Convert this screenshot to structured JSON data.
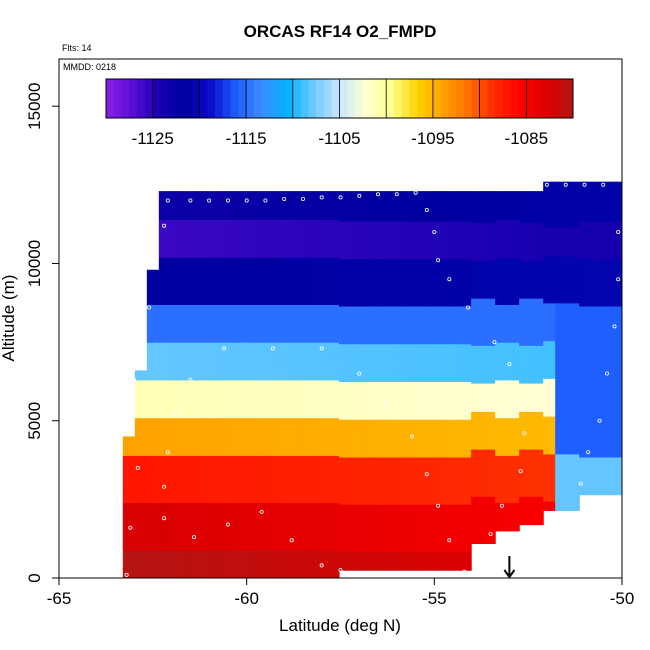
{
  "chart_data": {
    "type": "heatmap",
    "title": "ORCAS RF14 O2_FMPD",
    "annotations": {
      "flights": "Flts: 14",
      "date": "MMDD: 0218"
    },
    "xlabel": "Latitude (deg N)",
    "ylabel": "Altitude (m)",
    "xlim": [
      -65,
      -50
    ],
    "ylim": [
      0,
      16500
    ],
    "x_ticks": [
      -65,
      -60,
      -55,
      -50
    ],
    "y_ticks": [
      0,
      5000,
      10000,
      15000
    ],
    "x_tick_labels": [
      "-65",
      "-60",
      "-55",
      "-50"
    ],
    "y_tick_labels": [
      "0",
      "5000",
      "10000",
      "15000"
    ],
    "colorbar": {
      "range": [
        -1130,
        -1080
      ],
      "tick_values": [
        -1125,
        -1115,
        -1105,
        -1095,
        -1085
      ],
      "tick_labels": [
        "-1125",
        "-1115",
        "-1105",
        "-1095",
        "-1085"
      ],
      "colors": [
        "#8b1ee6",
        "#5a0fd6",
        "#1a00b0",
        "#0000a0",
        "#0a0ac8",
        "#1e5cff",
        "#3c8cff",
        "#00b4ff",
        "#6ec8ff",
        "#c8e6ff",
        "#ffffd2",
        "#ffff90",
        "#ffd200",
        "#ffa000",
        "#ff6e00",
        "#ff2800",
        "#ff0000",
        "#dc0000",
        "#b41414"
      ]
    },
    "flight_track": [
      {
        "lat": -63.2,
        "alt": 100
      },
      {
        "lat": -63.1,
        "alt": 1600
      },
      {
        "lat": -62.9,
        "alt": 3500
      },
      {
        "lat": -63.1,
        "alt": 5200
      },
      {
        "lat": -63.0,
        "alt": 6300
      },
      {
        "lat": -62.8,
        "alt": 7500
      },
      {
        "lat": -62.6,
        "alt": 8600
      },
      {
        "lat": -62.5,
        "alt": 9900
      },
      {
        "lat": -62.2,
        "alt": 11200
      },
      {
        "lat": -62.1,
        "alt": 12000
      },
      {
        "lat": -61.5,
        "alt": 12000
      },
      {
        "lat": -61.0,
        "alt": 12000
      },
      {
        "lat": -60.5,
        "alt": 12000
      },
      {
        "lat": -60.0,
        "alt": 12000
      },
      {
        "lat": -59.5,
        "alt": 12000
      },
      {
        "lat": -59.0,
        "alt": 12050
      },
      {
        "lat": -58.5,
        "alt": 12050
      },
      {
        "lat": -58.0,
        "alt": 12100
      },
      {
        "lat": -57.5,
        "alt": 12100
      },
      {
        "lat": -57.0,
        "alt": 12150
      },
      {
        "lat": -56.5,
        "alt": 12200
      },
      {
        "lat": -56.0,
        "alt": 12200
      },
      {
        "lat": -55.5,
        "alt": 12250
      },
      {
        "lat": -55.2,
        "alt": 11700
      },
      {
        "lat": -55.0,
        "alt": 11000
      },
      {
        "lat": -54.9,
        "alt": 10100
      },
      {
        "lat": -54.6,
        "alt": 9500
      },
      {
        "lat": -54.1,
        "alt": 8600
      },
      {
        "lat": -53.4,
        "alt": 7500
      },
      {
        "lat": -53.0,
        "alt": 6800
      },
      {
        "lat": -52.7,
        "alt": 5400
      },
      {
        "lat": -52.6,
        "alt": 4600
      },
      {
        "lat": -52.7,
        "alt": 3400
      },
      {
        "lat": -53.2,
        "alt": 2300
      },
      {
        "lat": -53.5,
        "alt": 1400
      },
      {
        "lat": -53.6,
        "alt": 600
      },
      {
        "lat": -54.2,
        "alt": 200
      },
      {
        "lat": -54.6,
        "alt": 1200
      },
      {
        "lat": -54.9,
        "alt": 2300
      },
      {
        "lat": -55.2,
        "alt": 3300
      },
      {
        "lat": -55.6,
        "alt": 4500
      },
      {
        "lat": -56.3,
        "alt": 5500
      },
      {
        "lat": -57.0,
        "alt": 6500
      },
      {
        "lat": -58.0,
        "alt": 7300
      },
      {
        "lat": -59.3,
        "alt": 7300
      },
      {
        "lat": -60.6,
        "alt": 7300
      },
      {
        "lat": -61.5,
        "alt": 6300
      },
      {
        "lat": -61.9,
        "alt": 5200
      },
      {
        "lat": -62.1,
        "alt": 4000
      },
      {
        "lat": -62.2,
        "alt": 2900
      },
      {
        "lat": -62.2,
        "alt": 1900
      },
      {
        "lat": -61.4,
        "alt": 1300
      },
      {
        "lat": -60.5,
        "alt": 1700
      },
      {
        "lat": -59.6,
        "alt": 2100
      },
      {
        "lat": -58.8,
        "alt": 1200
      },
      {
        "lat": -58.0,
        "alt": 400
      },
      {
        "lat": -57.5,
        "alt": 250
      },
      {
        "lat": -52.0,
        "alt": 12500
      },
      {
        "lat": -51.5,
        "alt": 12500
      },
      {
        "lat": -51.0,
        "alt": 12500
      },
      {
        "lat": -50.5,
        "alt": 12500
      },
      {
        "lat": -50.1,
        "alt": 11000
      },
      {
        "lat": -50.1,
        "alt": 9500
      },
      {
        "lat": -50.2,
        "alt": 8000
      },
      {
        "lat": -50.4,
        "alt": 6500
      },
      {
        "lat": -50.6,
        "alt": 5000
      },
      {
        "lat": -50.9,
        "alt": 4000
      },
      {
        "lat": -51.1,
        "alt": 3000
      }
    ],
    "marker": {
      "lat": -53.0,
      "alt": 0
    }
  }
}
